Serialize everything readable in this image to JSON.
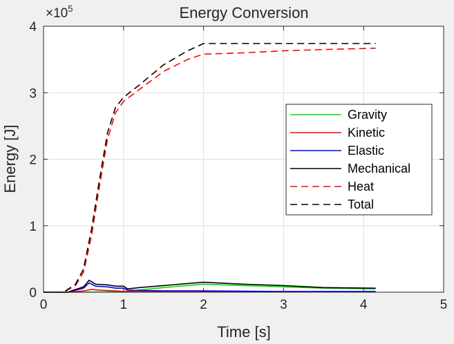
{
  "chart_data": {
    "type": "line",
    "title": "Energy Conversion",
    "xlabel": "Time [s]",
    "ylabel": "Energy [J]",
    "xlim": [
      0,
      5
    ],
    "ylim": [
      0,
      4
    ],
    "xticks": [
      "0",
      "1",
      "2",
      "3",
      "4",
      "5"
    ],
    "yticks": [
      "0",
      "1",
      "2",
      "3",
      "4"
    ],
    "y_exponent_label": "×10",
    "y_exponent_value": "5",
    "grid": true,
    "legend_position": "center-right",
    "series": [
      {
        "name": "Gravity",
        "color": "#00dd00",
        "style": "solid",
        "x": [
          0,
          0.5,
          1.0,
          1.5,
          2.0,
          2.5,
          3.0,
          3.5,
          4.15
        ],
        "y": [
          0,
          0,
          0.01,
          0.07,
          0.12,
          0.1,
          0.08,
          0.06,
          0.05
        ]
      },
      {
        "name": "Kinetic",
        "color": "#ff0000",
        "style": "solid",
        "x": [
          0,
          0.3,
          0.5,
          0.6,
          0.7,
          0.9,
          1.0,
          1.5,
          2.0,
          3.0,
          4.15
        ],
        "y": [
          0,
          0,
          0.02,
          0.04,
          0.03,
          0.02,
          0.01,
          0.01,
          0.01,
          0.01,
          0.01
        ]
      },
      {
        "name": "Elastic",
        "color": "#0000ff",
        "style": "solid",
        "x": [
          0,
          0.3,
          0.5,
          0.57,
          0.65,
          0.8,
          0.9,
          1.0,
          1.05,
          1.5,
          2.0,
          3.0,
          4.15
        ],
        "y": [
          0,
          0,
          0.06,
          0.14,
          0.09,
          0.08,
          0.06,
          0.06,
          0.03,
          0.02,
          0.02,
          0.01,
          0.01
        ]
      },
      {
        "name": "Mechanical",
        "color": "#000000",
        "style": "solid",
        "x": [
          0,
          0.3,
          0.5,
          0.57,
          0.65,
          0.8,
          0.9,
          1.0,
          1.05,
          1.2,
          1.5,
          2.0,
          2.5,
          3.0,
          3.5,
          4.15
        ],
        "y": [
          0,
          0,
          0.08,
          0.18,
          0.12,
          0.11,
          0.09,
          0.09,
          0.05,
          0.07,
          0.1,
          0.15,
          0.12,
          0.1,
          0.07,
          0.06
        ]
      },
      {
        "name": "Heat",
        "color": "#ff0000",
        "style": "dashed",
        "x": [
          0,
          0.25,
          0.4,
          0.5,
          0.6,
          0.7,
          0.8,
          0.9,
          1.0,
          1.2,
          1.5,
          1.8,
          2.0,
          2.5,
          3.0,
          3.5,
          4.15
        ],
        "y": [
          0,
          0,
          0.1,
          0.3,
          0.85,
          1.6,
          2.3,
          2.7,
          2.87,
          3.05,
          3.32,
          3.5,
          3.58,
          3.6,
          3.63,
          3.65,
          3.67
        ]
      },
      {
        "name": "Total",
        "color": "#000000",
        "style": "dashed",
        "x": [
          0,
          0.25,
          0.4,
          0.5,
          0.6,
          0.7,
          0.8,
          0.9,
          1.0,
          1.2,
          1.5,
          1.8,
          2.0,
          2.5,
          3.0,
          3.5,
          4.15
        ],
        "y": [
          0,
          0,
          0.12,
          0.35,
          0.95,
          1.7,
          2.4,
          2.78,
          2.93,
          3.12,
          3.42,
          3.63,
          3.74,
          3.74,
          3.74,
          3.74,
          3.74
        ]
      }
    ]
  }
}
